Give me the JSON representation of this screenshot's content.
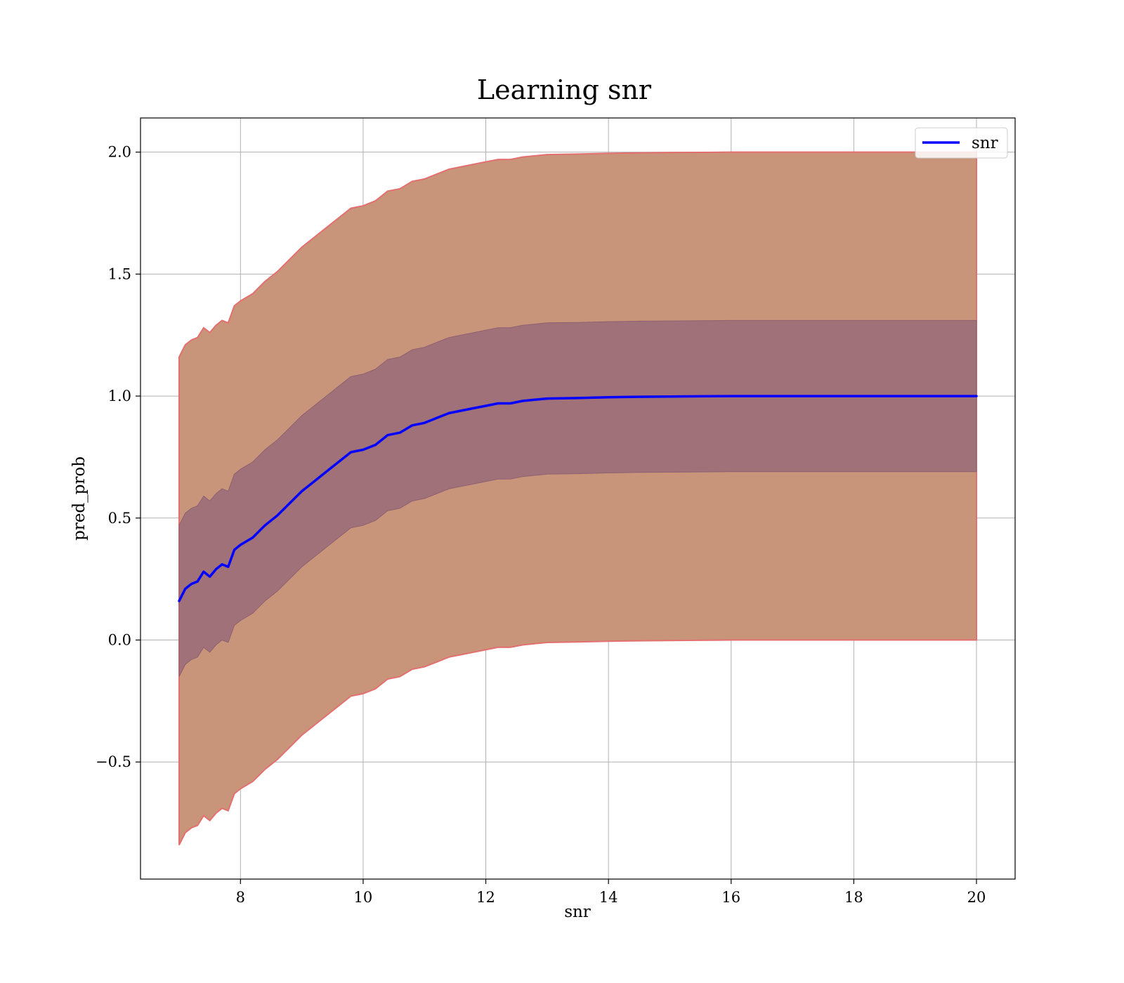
{
  "chart_data": {
    "type": "line",
    "title": "Learning snr",
    "xlabel": "snr",
    "ylabel": "pred_prob",
    "xlim": [
      6.37,
      20.63
    ],
    "ylim": [
      -0.98,
      2.14
    ],
    "xticks": [
      8,
      10,
      12,
      14,
      16,
      18,
      20
    ],
    "yticks": [
      -0.5,
      0.0,
      0.5,
      1.0,
      1.5,
      2.0
    ],
    "ytick_labels": [
      "−0.5",
      "0.0",
      "0.5",
      "1.0",
      "1.5",
      "2.0"
    ],
    "grid": true,
    "legend": {
      "placement": "top-right",
      "entries": [
        "snr"
      ]
    },
    "colors": {
      "line": "#0000ff",
      "inner_band": "#a1717a",
      "outer_band": "#c8957a",
      "outer_edge": "#e36f6f"
    },
    "series": [
      {
        "name": "snr",
        "x": [
          7.0,
          7.1,
          7.2,
          7.3,
          7.4,
          7.5,
          7.6,
          7.7,
          7.8,
          7.9,
          8.0,
          8.2,
          8.4,
          8.6,
          8.8,
          9.0,
          9.2,
          9.4,
          9.6,
          9.8,
          10.0,
          10.2,
          10.4,
          10.6,
          10.8,
          11.0,
          11.2,
          11.4,
          11.6,
          11.8,
          12.0,
          12.2,
          12.4,
          12.6,
          12.8,
          13.0,
          13.5,
          14.0,
          14.5,
          15.0,
          15.5,
          16.0,
          17.0,
          18.0,
          19.0,
          20.0
        ],
        "y": [
          0.16,
          0.21,
          0.23,
          0.24,
          0.28,
          0.26,
          0.29,
          0.31,
          0.3,
          0.37,
          0.39,
          0.42,
          0.47,
          0.51,
          0.56,
          0.61,
          0.65,
          0.69,
          0.73,
          0.77,
          0.78,
          0.8,
          0.84,
          0.85,
          0.88,
          0.89,
          0.91,
          0.93,
          0.94,
          0.95,
          0.96,
          0.97,
          0.97,
          0.98,
          0.985,
          0.99,
          0.992,
          0.995,
          0.997,
          0.998,
          0.999,
          1.0,
          1.0,
          1.0,
          1.0,
          1.0
        ],
        "band_inner": {
          "lower_offset": 0.31,
          "upper_offset": 0.31
        },
        "band_outer": {
          "lower_offset": 1.0,
          "upper_offset": 1.0
        }
      }
    ]
  }
}
